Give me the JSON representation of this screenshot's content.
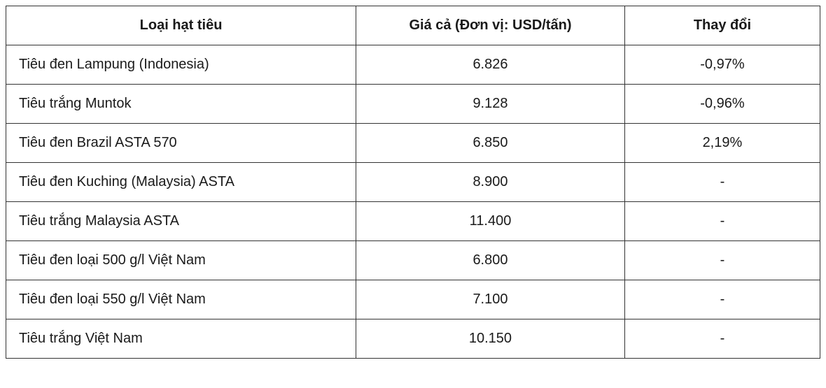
{
  "table": {
    "columns": [
      {
        "key": "type",
        "label": "Loại hạt tiêu",
        "align": "left",
        "width": "43%"
      },
      {
        "key": "price",
        "label": "Giá cả (Đơn vị: USD/tấn)",
        "align": "center",
        "width": "33%"
      },
      {
        "key": "change",
        "label": "Thay đổi",
        "align": "center",
        "width": "24%"
      }
    ],
    "rows": [
      {
        "type": "Tiêu đen Lampung (Indonesia)",
        "price": "6.826",
        "change": "-0,97%"
      },
      {
        "type": "Tiêu trắng Muntok",
        "price": "9.128",
        "change": "-0,96%"
      },
      {
        "type": "Tiêu đen Brazil ASTA 570",
        "price": "6.850",
        "change": "2,19%"
      },
      {
        "type": "Tiêu đen Kuching (Malaysia) ASTA",
        "price": "8.900",
        "change": "-"
      },
      {
        "type": "Tiêu trắng Malaysia ASTA",
        "price": "11.400",
        "change": "-"
      },
      {
        "type": "Tiêu đen loại 500 g/l Việt Nam",
        "price": "6.800",
        "change": "-"
      },
      {
        "type": "Tiêu đen loại 550 g/l Việt Nam",
        "price": "7.100",
        "change": "-"
      },
      {
        "type": "Tiêu trắng Việt Nam",
        "price": "10.150",
        "change": "-"
      }
    ],
    "styling": {
      "border_color": "#333333",
      "background_color": "#ffffff",
      "text_color": "#1a1a1a",
      "font_size": 20,
      "header_font_weight": 600,
      "cell_padding_v": 16,
      "cell_padding_h": 18
    }
  }
}
